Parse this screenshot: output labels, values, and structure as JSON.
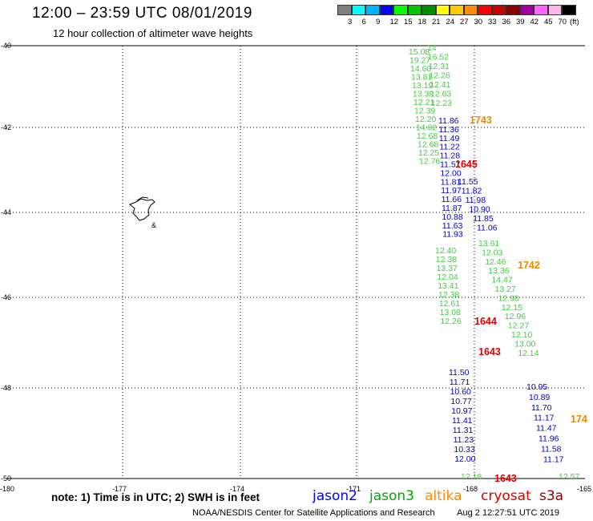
{
  "header": {
    "title": "12:00 – 23:59 UTC 08/01/2019",
    "subtitle": "12 hour collection of altimeter wave heights"
  },
  "legend": {
    "colors": [
      "#808080",
      "#00ffff",
      "#00b4ff",
      "#0000ff",
      "#00ff00",
      "#00c800",
      "#008c00",
      "#ffff00",
      "#ffc800",
      "#ff8c00",
      "#ff0000",
      "#c80000",
      "#8c0000",
      "#a000a0",
      "#ff64ff",
      "#ffb4e6",
      "#000000"
    ],
    "labels": [
      "3",
      "6",
      "9",
      "12",
      "15",
      "18",
      "21",
      "24",
      "27",
      "30",
      "33",
      "36",
      "39",
      "42",
      "45",
      "70",
      "(ft)"
    ]
  },
  "axes": {
    "x_ticks": [
      "-180",
      "-177",
      "-174",
      "-171",
      "-168",
      "-165"
    ],
    "y_ticks": [
      "-40",
      "-42",
      "-44",
      "-46",
      "-48",
      "-50"
    ]
  },
  "tracks": [
    {
      "sat": "jason3",
      "color": "#44cc44",
      "values": [
        "15.08",
        "19.27",
        "14.60",
        "13.81",
        "13.19",
        "13.39",
        "12.21",
        "12.39",
        "12.20",
        "14.02",
        "12.68",
        "12.68",
        "12.25",
        "12.76"
      ]
    },
    {
      "sat": "jason3",
      "color": "#44cc44",
      "values": [
        "14",
        "16.52",
        "12.31",
        "12.26",
        "12.41",
        "12.63",
        "12.23"
      ]
    },
    {
      "sat": "jason2",
      "color": "#0000cc",
      "values": [
        "11.86",
        "11.36",
        "11.49",
        "11.22",
        "11.28",
        "11.57",
        "12.00",
        "11.81",
        "11.97",
        "11.66",
        "11.87",
        "10.88",
        "11.63",
        "11.93"
      ]
    },
    {
      "sat": "jason2",
      "color": "#0000cc",
      "values": [
        "11.55",
        "11.82",
        "11.98",
        "10.90",
        "11.85",
        "11.06"
      ]
    },
    {
      "sat": "jason3",
      "color": "#44cc44",
      "values": [
        "12.40",
        "12.38",
        "13.37",
        "12.04",
        "13.41",
        "12.38",
        "12.61",
        "13.08",
        "12.26"
      ]
    },
    {
      "sat": "jason2",
      "color": "#0000cc",
      "values": [
        "11.50",
        "11.71",
        "10.60",
        "10.77",
        "10.97",
        "11.41",
        "11.31",
        "11.23",
        "10.33",
        "12.00"
      ]
    },
    {
      "sat": "jason3",
      "color": "#44cc44",
      "values": [
        "12.18"
      ]
    },
    {
      "sat": "jason3",
      "color": "#44cc44",
      "values": [
        "13.61",
        "12.03",
        "12.46",
        "13.36",
        "14.47",
        "13.27",
        "12.98",
        "12.15",
        "12.96",
        "12.27",
        "12.10",
        "13.00",
        "12.14"
      ]
    },
    {
      "sat": "jason2",
      "color": "#0000cc",
      "values": [
        "10.95",
        "10.89",
        "11.70",
        "11.17",
        "11.47",
        "11.96",
        "11.58",
        "11.17"
      ]
    },
    {
      "sat": "jason3",
      "color": "#44cc44",
      "values": [
        "12.57"
      ]
    }
  ],
  "time_labels": [
    {
      "text": "1743",
      "color": "#ee8800"
    },
    {
      "text": "1645",
      "color": "#dd0000"
    },
    {
      "text": "1742",
      "color": "#ee8800"
    },
    {
      "text": "1644",
      "color": "#dd0000"
    },
    {
      "text": "1643",
      "color": "#dd0000"
    },
    {
      "text": "174",
      "color": "#ee8800"
    },
    {
      "text": "1643",
      "color": "#dd0000"
    }
  ],
  "island_label": "&",
  "footer": {
    "note": "note: 1) Time is in UTC; 2) SWH is in feet",
    "satellites": [
      {
        "name": "jason2",
        "color": "#0000ff"
      },
      {
        "name": "jason3",
        "color": "#00aa00"
      },
      {
        "name": "altika",
        "color": "#ff8800"
      },
      {
        "name": "cryosat",
        "color": "#dd0000"
      },
      {
        "name": "s3a",
        "color": "#880000"
      }
    ],
    "credit": "NOAA/NESDIS Center for Satellite Applications and Research",
    "timestamp": "Aug  2 12:27:51 UTC 2019"
  }
}
